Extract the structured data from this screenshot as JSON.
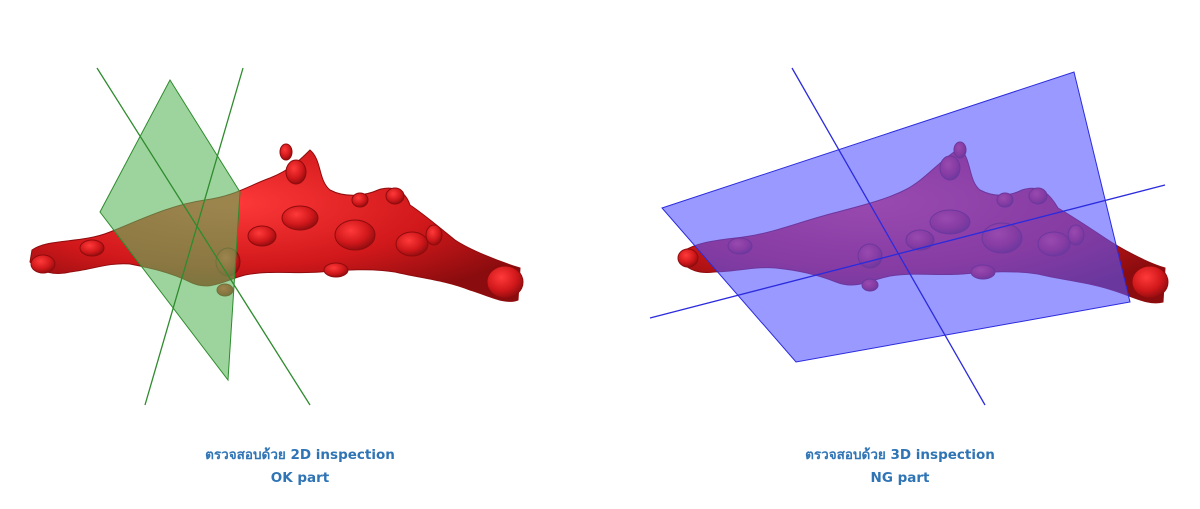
{
  "panels": [
    {
      "caption_line1": "ตรวจสอบด้วย 2D inspection",
      "caption_line2": "OK part",
      "plane_color": "#5cb85c",
      "line_color": "#2e8b2e",
      "part_color": "#c8191c"
    },
    {
      "caption_line1": "ตรวจสอบด้วย 3D inspection",
      "caption_line2": "NG part",
      "plane_color": "#5555ff",
      "line_color": "#2b2bdd",
      "part_color": "#c8191c"
    }
  ]
}
